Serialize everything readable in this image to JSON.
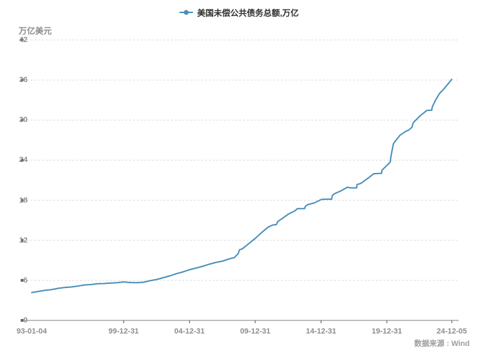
{
  "legend": {
    "series_label": "美国未偿公共债务总额,万亿"
  },
  "y_axis": {
    "unit_label": "万亿美元",
    "ticks": [
      0,
      6,
      12,
      18,
      24,
      30,
      36,
      42
    ]
  },
  "x_axis": {
    "ticks": [
      {
        "label": "93-01-04",
        "t": 1993.01
      },
      {
        "label": "99-12-31",
        "t": 1999.997
      },
      {
        "label": "04-12-31",
        "t": 2004.997
      },
      {
        "label": "09-12-31",
        "t": 2009.997
      },
      {
        "label": "14-12-31",
        "t": 2014.997
      },
      {
        "label": "19-12-31",
        "t": 2019.997
      },
      {
        "label": "24-12-05",
        "t": 2024.93
      }
    ]
  },
  "footer": {
    "source_label": "数据来源 : Wind"
  },
  "colors": {
    "line": "#4b8fba",
    "grid": "#d7d7d7",
    "axis": "#aaaaaa",
    "tick_square": "#666666",
    "axis_text": "#8d8d8d",
    "legend_text": "#2f2f2f",
    "source_text": "#9e9e9e"
  },
  "chart_data": {
    "type": "line",
    "title": "",
    "xlabel": "",
    "ylabel": "万亿美元",
    "ylim": [
      0,
      42
    ],
    "x_range": [
      1993.01,
      2024.93
    ],
    "grid": true,
    "legend_position": "top-center",
    "x_tick_labels": [
      "93-01-04",
      "99-12-31",
      "04-12-31",
      "09-12-31",
      "14-12-31",
      "19-12-31",
      "24-12-05"
    ],
    "y_tick_labels": [
      "0",
      "6",
      "12",
      "18",
      "24",
      "30",
      "36",
      "42"
    ],
    "series": [
      {
        "name": "美国未偿公共债务总额,万亿",
        "units": "trillion USD",
        "points": [
          [
            1993.01,
            4.17
          ],
          [
            1993.5,
            4.33
          ],
          [
            1994.0,
            4.5
          ],
          [
            1994.5,
            4.6
          ],
          [
            1995.0,
            4.8
          ],
          [
            1995.5,
            4.93
          ],
          [
            1996.0,
            5.0
          ],
          [
            1996.5,
            5.14
          ],
          [
            1997.0,
            5.3
          ],
          [
            1997.5,
            5.37
          ],
          [
            1998.0,
            5.5
          ],
          [
            1998.5,
            5.52
          ],
          [
            1999.0,
            5.6
          ],
          [
            1999.5,
            5.64
          ],
          [
            2000.0,
            5.77
          ],
          [
            2000.5,
            5.68
          ],
          [
            2001.0,
            5.66
          ],
          [
            2001.5,
            5.72
          ],
          [
            2002.0,
            5.94
          ],
          [
            2002.5,
            6.13
          ],
          [
            2003.0,
            6.4
          ],
          [
            2003.5,
            6.67
          ],
          [
            2004.0,
            7.0
          ],
          [
            2004.5,
            7.27
          ],
          [
            2005.0,
            7.6
          ],
          [
            2005.5,
            7.84
          ],
          [
            2006.0,
            8.1
          ],
          [
            2006.5,
            8.42
          ],
          [
            2007.0,
            8.68
          ],
          [
            2007.5,
            8.87
          ],
          [
            2008.0,
            9.2
          ],
          [
            2008.4,
            9.4
          ],
          [
            2008.7,
            10.0
          ],
          [
            2008.8,
            10.6
          ],
          [
            2009.0,
            10.7
          ],
          [
            2009.5,
            11.5
          ],
          [
            2010.0,
            12.3
          ],
          [
            2010.5,
            13.2
          ],
          [
            2011.0,
            14.0
          ],
          [
            2011.35,
            14.3
          ],
          [
            2011.6,
            14.34
          ],
          [
            2011.7,
            14.8
          ],
          [
            2012.0,
            15.2
          ],
          [
            2012.5,
            15.9
          ],
          [
            2013.0,
            16.4
          ],
          [
            2013.2,
            16.74
          ],
          [
            2013.75,
            16.75
          ],
          [
            2013.8,
            17.1
          ],
          [
            2014.0,
            17.35
          ],
          [
            2014.5,
            17.6
          ],
          [
            2015.0,
            18.1
          ],
          [
            2015.2,
            18.15
          ],
          [
            2015.8,
            18.15
          ],
          [
            2015.85,
            18.7
          ],
          [
            2016.0,
            18.96
          ],
          [
            2016.5,
            19.4
          ],
          [
            2017.0,
            19.95
          ],
          [
            2017.2,
            19.85
          ],
          [
            2017.7,
            19.85
          ],
          [
            2017.73,
            20.35
          ],
          [
            2018.0,
            20.5
          ],
          [
            2018.5,
            21.2
          ],
          [
            2019.0,
            21.97
          ],
          [
            2019.35,
            22.0
          ],
          [
            2019.6,
            22.03
          ],
          [
            2019.62,
            22.5
          ],
          [
            2020.0,
            23.2
          ],
          [
            2020.25,
            23.7
          ],
          [
            2020.3,
            24.5
          ],
          [
            2020.45,
            26.0
          ],
          [
            2020.5,
            26.5
          ],
          [
            2021.0,
            27.75
          ],
          [
            2021.5,
            28.4
          ],
          [
            2021.6,
            28.43
          ],
          [
            2021.9,
            28.9
          ],
          [
            2022.0,
            29.6
          ],
          [
            2022.5,
            30.6
          ],
          [
            2023.0,
            31.4
          ],
          [
            2023.05,
            31.45
          ],
          [
            2023.4,
            31.47
          ],
          [
            2023.45,
            32.0
          ],
          [
            2023.7,
            33.0
          ],
          [
            2024.0,
            34.0
          ],
          [
            2024.3,
            34.6
          ],
          [
            2024.6,
            35.3
          ],
          [
            2024.92,
            36.1
          ]
        ]
      }
    ]
  }
}
